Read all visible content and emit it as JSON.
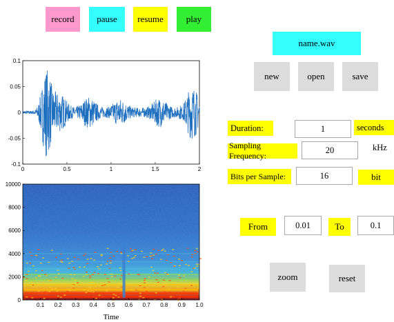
{
  "toolbar": {
    "record": {
      "label": "record",
      "color": "#ff99cc"
    },
    "pause": {
      "label": "pause",
      "color": "#33ffff"
    },
    "resume": {
      "label": "resume",
      "color": "#ffff00"
    },
    "play": {
      "label": "play",
      "color": "#33ee33"
    }
  },
  "file": {
    "name": "name.wav",
    "name_color": "#33ffff",
    "new_label": "new",
    "open_label": "open",
    "save_label": "save"
  },
  "settings": {
    "duration_label": "Duration:",
    "duration_value": "1",
    "duration_unit": "seconds",
    "fs_label": "Sampling Frequency:",
    "fs_value": "20",
    "fs_unit": "kHz",
    "bits_label": "Bits per Sample:",
    "bits_value": "16",
    "bits_unit": "bit"
  },
  "range": {
    "from_label": "From",
    "from_value": "0.01",
    "to_label": "To",
    "to_value": "0.1"
  },
  "actions": {
    "zoom_label": "zoom",
    "reset_label": "reset"
  },
  "chart_data": [
    {
      "type": "line",
      "title": "",
      "xlabel": "",
      "ylabel": "",
      "xlim": [
        0,
        2
      ],
      "ylim": [
        -0.1,
        0.1
      ],
      "x_ticks": [
        "0",
        "0.5",
        "1",
        "1.5",
        "2"
      ],
      "y_ticks": [
        "0.1",
        "0.05",
        "0",
        "-0.05",
        "-0.1"
      ],
      "color": "#1f6fbf",
      "bursts": [
        {
          "x": 0.27,
          "amplitude": 0.082
        },
        {
          "x": 0.42,
          "amplitude": 0.028
        },
        {
          "x": 0.75,
          "amplitude": 0.022
        },
        {
          "x": 1.1,
          "amplitude": 0.018
        },
        {
          "x": 1.55,
          "amplitude": 0.02
        },
        {
          "x": 1.92,
          "amplitude": 0.05
        }
      ]
    },
    {
      "type": "heatmap",
      "title": "",
      "xlabel": "Time",
      "ylabel": "",
      "xlim": [
        0,
        1
      ],
      "ylim": [
        0,
        10000
      ],
      "x_ticks": [
        "0.1",
        "0.2",
        "0.3",
        "0.4",
        "0.5",
        "0.6",
        "0.7",
        "0.8",
        "0.9",
        "1.0"
      ],
      "y_ticks": [
        "10000",
        "8000",
        "6000",
        "4000",
        "2000",
        "0"
      ],
      "colormap": "jet"
    }
  ]
}
